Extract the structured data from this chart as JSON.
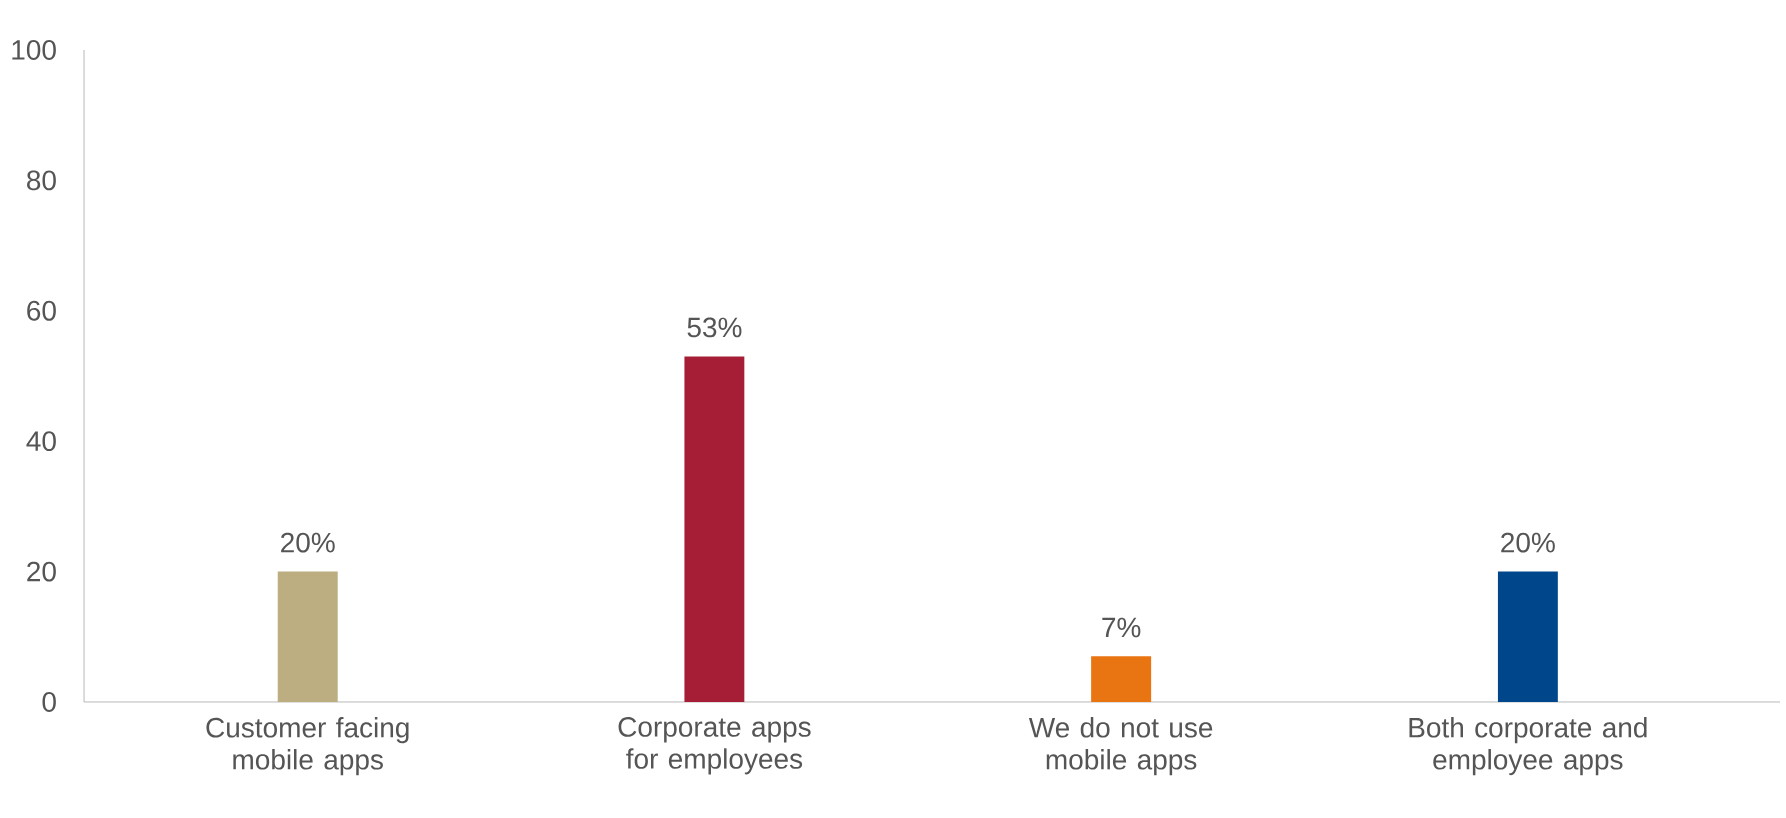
{
  "chart_data": {
    "type": "bar",
    "categories": [
      "Customer facing mobile apps",
      "Corporate apps for employees",
      "We do not use mobile apps",
      "Both corporate and employee apps"
    ],
    "values": [
      20,
      53,
      7,
      20
    ],
    "colors": [
      "#bcae80",
      "#a61e35",
      "#e87511",
      "#00468b"
    ],
    "value_labels": [
      "20%",
      "53%",
      "7%",
      "20%"
    ],
    "ylim": [
      0,
      100
    ],
    "yticks": [
      0,
      20,
      40,
      60,
      80,
      100
    ]
  }
}
